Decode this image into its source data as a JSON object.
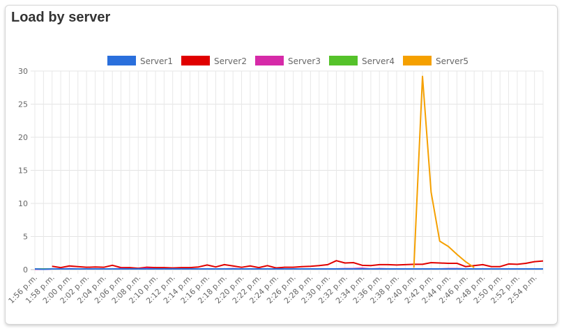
{
  "card": {
    "title": "Load by server"
  },
  "chart_data": {
    "type": "line",
    "ylim": [
      0,
      30
    ],
    "yticks": [
      0,
      5,
      10,
      15,
      20,
      25,
      30
    ],
    "x": [
      "1:56 p.m.",
      "1:57 p.m.",
      "1:58 p.m.",
      "1:59 p.m.",
      "2:00 p.m.",
      "2:01 p.m.",
      "2:02 p.m.",
      "2:03 p.m.",
      "2:04 p.m.",
      "2:05 p.m.",
      "2:06 p.m.",
      "2:07 p.m.",
      "2:08 p.m.",
      "2:09 p.m.",
      "2:10 p.m.",
      "2:11 p.m.",
      "2:12 p.m.",
      "2:13 p.m.",
      "2:14 p.m.",
      "2:15 p.m.",
      "2:16 p.m.",
      "2:17 p.m.",
      "2:18 p.m.",
      "2:19 p.m.",
      "2:20 p.m.",
      "2:21 p.m.",
      "2:22 p.m.",
      "2:23 p.m.",
      "2:24 p.m.",
      "2:25 p.m.",
      "2:26 p.m.",
      "2:27 p.m.",
      "2:28 p.m.",
      "2:29 p.m.",
      "2:30 p.m.",
      "2:31 p.m.",
      "2:32 p.m.",
      "2:33 p.m.",
      "2:34 p.m.",
      "2:35 p.m.",
      "2:36 p.m.",
      "2:37 p.m.",
      "2:38 p.m.",
      "2:39 p.m.",
      "2:40 p.m.",
      "2:41 p.m.",
      "2:42 p.m.",
      "2:43 p.m.",
      "2:44 p.m.",
      "2:45 p.m.",
      "2:46 p.m.",
      "2:47 p.m.",
      "2:48 p.m.",
      "2:49 p.m.",
      "2:50 p.m.",
      "2:51 p.m.",
      "2:52 p.m.",
      "2:53 p.m.",
      "2:54 p.m.",
      "2:55 p.m."
    ],
    "xtick_labels": [
      "1:56 p.m.",
      "1:58 p.m.",
      "2:00 p.m.",
      "2:02 p.m.",
      "2:04 p.m.",
      "2:06 p.m.",
      "2:08 p.m.",
      "2:10 p.m.",
      "2:12 p.m.",
      "2:14 p.m.",
      "2:16 p.m.",
      "2:18 p.m.",
      "2:20 p.m.",
      "2:22 p.m.",
      "2:24 p.m.",
      "2:26 p.m.",
      "2:28 p.m.",
      "2:30 p.m.",
      "2:32 p.m.",
      "2:34 p.m.",
      "2:36 p.m.",
      "2:38 p.m.",
      "2:40 p.m.",
      "2:42 p.m.",
      "2:44 p.m.",
      "2:46 p.m.",
      "2:48 p.m.",
      "2:50 p.m.",
      "2:52 p.m.",
      "2:54 p.m."
    ],
    "grid": true,
    "legend_position": "top-center",
    "series": [
      {
        "name": "Server1",
        "color": "#2a6fdc",
        "values": [
          0.1,
          0.05,
          0.1,
          0.1,
          0.1,
          0.1,
          0.1,
          0.1,
          0.1,
          0.1,
          0.1,
          0.1,
          0.1,
          0.1,
          0.1,
          0.1,
          0.1,
          0.1,
          0.1,
          0.1,
          0.1,
          0.1,
          0.1,
          0.1,
          0.1,
          0.1,
          0.1,
          0.1,
          0.1,
          0.1,
          0.1,
          0.1,
          0.1,
          0.1,
          0.1,
          0.1,
          0.1,
          0.1,
          0.1,
          0.1,
          0.1,
          0.1,
          0.1,
          0.1,
          0.1,
          0.1,
          0.1,
          0.1,
          0.1,
          0.1,
          0.1,
          0.1,
          0.1,
          0.1,
          0.1,
          0.1,
          0.1,
          0.1,
          0.1,
          0.1
        ]
      },
      {
        "name": "Server2",
        "color": "#e00000",
        "values": [
          null,
          null,
          0.5,
          0.3,
          0.55,
          0.45,
          0.35,
          0.4,
          0.35,
          0.65,
          0.3,
          0.3,
          0.2,
          0.35,
          0.3,
          0.3,
          0.25,
          0.3,
          0.3,
          0.4,
          0.7,
          0.4,
          0.75,
          0.55,
          0.35,
          0.55,
          0.3,
          0.6,
          0.25,
          0.35,
          0.35,
          0.45,
          0.5,
          0.6,
          0.75,
          1.35,
          1.0,
          1.05,
          0.65,
          0.6,
          0.75,
          0.75,
          0.7,
          0.75,
          0.8,
          0.8,
          1.05,
          1.0,
          0.95,
          0.95,
          0.45,
          0.6,
          0.75,
          0.45,
          0.45,
          0.85,
          0.8,
          0.95,
          1.2,
          1.3
        ]
      },
      {
        "name": "Server3",
        "color": "#d62aa8",
        "values": [
          0.05,
          0.05,
          0.1,
          0.1,
          0.15,
          0.1,
          0.1,
          0.1,
          0.1,
          0.1,
          0.15,
          0.1,
          0.1,
          0.2,
          0.1,
          0.1,
          0.1,
          0.1,
          0.1,
          0.1,
          0.1,
          0.1,
          0.1,
          0.15,
          0.1,
          0.1,
          0.1,
          0.1,
          0.1,
          0.1,
          0.1,
          0.1,
          0.1,
          0.1,
          0.1,
          0.1,
          0.15,
          0.15,
          0.2,
          0.1,
          0.15,
          0.1,
          0.1,
          0.1,
          0.1,
          0.1,
          0.1,
          0.1,
          0.15,
          0.15,
          0.1,
          0.1,
          0.1,
          0.1,
          0.1,
          0.1,
          0.1,
          0.1,
          0.1,
          0.1
        ]
      },
      {
        "name": "Server4",
        "color": "#55c22a",
        "values": [
          0.1,
          0.1,
          0.1,
          0.1,
          0.1,
          0.1,
          0.1,
          0.1,
          0.1,
          0.1,
          0.1,
          0.1,
          0.1,
          0.1,
          0.1,
          0.1,
          0.1,
          0.1,
          0.1,
          0.1,
          0.1,
          0.1,
          0.1,
          0.1,
          0.1,
          0.1,
          0.1,
          0.1,
          0.1,
          0.1,
          0.1,
          0.1,
          0.1,
          0.1,
          0.1,
          0.1,
          0.1,
          0.1,
          0.1,
          0.1,
          0.1,
          0.1,
          0.1,
          0.1,
          0.1,
          0.1,
          0.1,
          0.1,
          0.1,
          0.1,
          0.1,
          0.1,
          0.1,
          0.1,
          0.1,
          0.1,
          0.1,
          0.1,
          0.1,
          0.1
        ]
      },
      {
        "name": "Server5",
        "color": "#f5a000",
        "values": [
          null,
          null,
          null,
          null,
          null,
          null,
          null,
          null,
          null,
          null,
          null,
          null,
          null,
          null,
          null,
          null,
          null,
          null,
          null,
          null,
          null,
          null,
          null,
          null,
          null,
          null,
          null,
          null,
          null,
          null,
          null,
          null,
          null,
          null,
          null,
          null,
          null,
          null,
          null,
          null,
          null,
          null,
          null,
          null,
          0.3,
          29.2,
          11.7,
          4.3,
          3.5,
          2.3,
          1.2,
          0.3,
          null,
          null,
          null,
          null,
          null,
          null,
          null,
          null
        ]
      }
    ]
  }
}
